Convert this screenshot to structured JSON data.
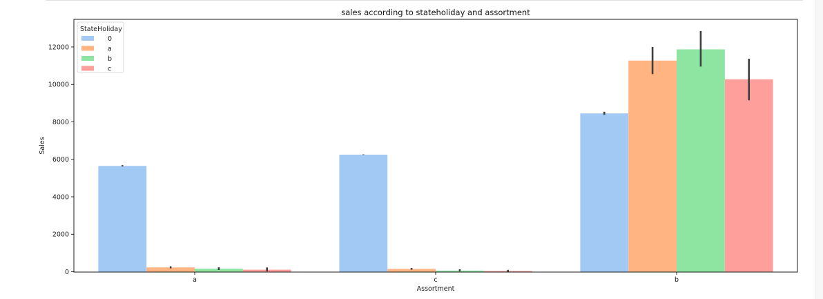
{
  "chart_data": {
    "type": "bar",
    "title": "sales according to stateholiday and assortment",
    "xlabel": "Assortment",
    "ylabel": "Sales",
    "categories": [
      "a",
      "c",
      "b"
    ],
    "ylim": [
      0,
      13500
    ],
    "yticks": [
      0,
      2000,
      4000,
      6000,
      8000,
      10000,
      12000
    ],
    "grid": false,
    "legend": {
      "title": "StateHoliday",
      "placement": "top-left"
    },
    "series": [
      {
        "name": "0",
        "color": "#a1c9f4",
        "values": [
          5650,
          6250,
          8450
        ],
        "err_low": [
          5620,
          6235,
          8380
        ],
        "err_high": [
          5690,
          6265,
          8540
        ]
      },
      {
        "name": "a",
        "color": "#ffb482",
        "values": [
          230,
          150,
          11270
        ],
        "err_low": [
          180,
          110,
          10550
        ],
        "err_high": [
          290,
          200,
          12000
        ]
      },
      {
        "name": "b",
        "color": "#8de5a1",
        "values": [
          160,
          60,
          11870
        ],
        "err_low": [
          90,
          20,
          10950
        ],
        "err_high": [
          240,
          130,
          12850
        ]
      },
      {
        "name": "c",
        "color": "#ff9f9b",
        "values": [
          110,
          40,
          10270
        ],
        "err_low": [
          20,
          0,
          9150
        ],
        "err_high": [
          230,
          100,
          11370
        ]
      }
    ]
  }
}
